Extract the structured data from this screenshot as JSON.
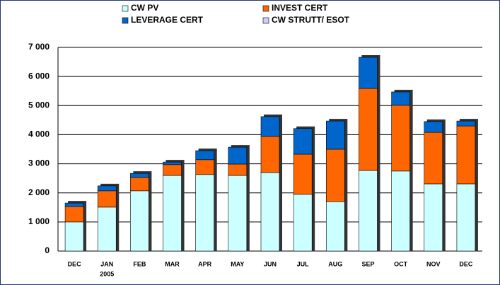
{
  "chart_data": {
    "type": "stacked_bar",
    "categories": [
      "DEC",
      "JAN",
      "FEB",
      "MAR",
      "APR",
      "MAY",
      "JUN",
      "JUL",
      "AUG",
      "SEP",
      "OCT",
      "NOV",
      "DEC"
    ],
    "category_sublabels": {
      "1": "2005"
    },
    "series": [
      {
        "name": "CW PV",
        "color": "#ccffff",
        "values": [
          1000,
          1510,
          2070,
          2600,
          2630,
          2600,
          2700,
          1950,
          1700,
          2770,
          2750,
          2310,
          2310
        ]
      },
      {
        "name": "INVEST CERT",
        "color": "#ff6600",
        "values": [
          530,
          560,
          460,
          370,
          510,
          390,
          1240,
          1380,
          1800,
          2820,
          2260,
          1770,
          1990
        ]
      },
      {
        "name": "LEVERAGE CERT",
        "color": "#0066cc",
        "values": [
          120,
          170,
          140,
          90,
          310,
          580,
          680,
          880,
          970,
          1070,
          460,
          370,
          170
        ]
      },
      {
        "name": "CW STRUTT/ ESOT",
        "color": "#ccccff",
        "values": [
          0,
          0,
          0,
          0,
          0,
          0,
          0,
          0,
          0,
          0,
          0,
          0,
          0
        ]
      }
    ],
    "ylim": [
      0,
      7000
    ],
    "yticks": [
      0,
      {
        "value": 1000,
        "label": "1 000"
      },
      {
        "value": 2000,
        "label": "2 000"
      },
      {
        "value": 3000,
        "label": "3 000"
      },
      {
        "value": 4000,
        "label": "4 000"
      },
      {
        "value": 5000,
        "label": "5 000"
      },
      {
        "value": 6000,
        "label": "6 000"
      },
      {
        "value": 7000,
        "label": "7 000"
      }
    ],
    "grid": true
  }
}
